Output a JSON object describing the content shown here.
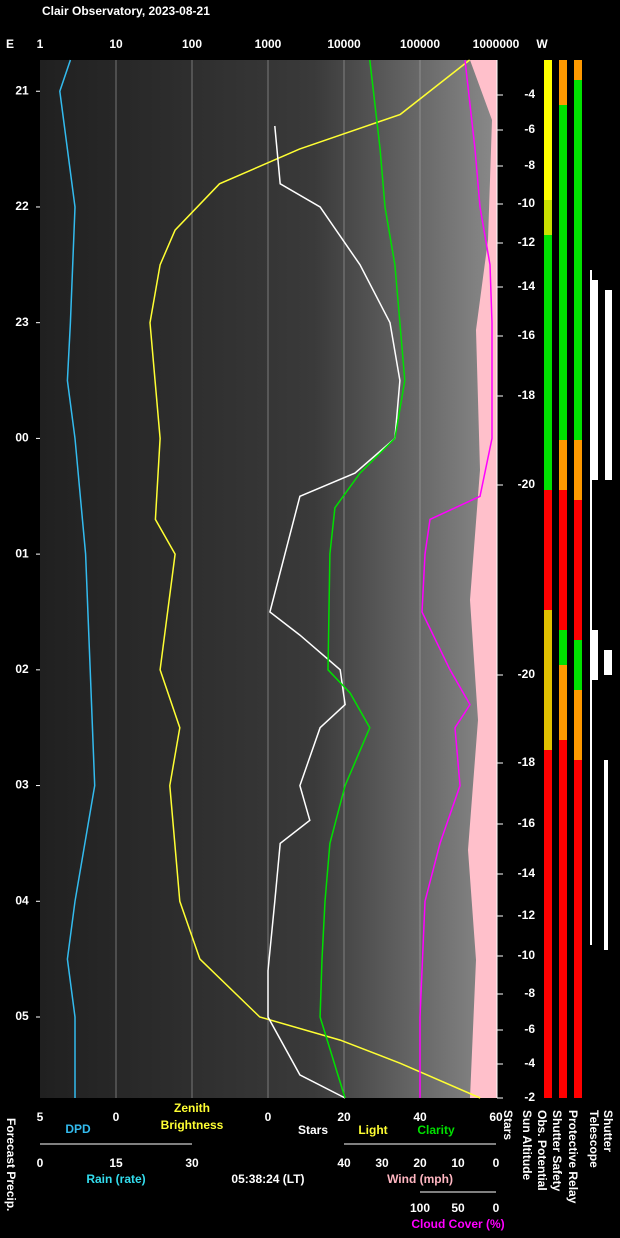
{
  "title": "Clair Observatory, 2023-08-21",
  "timestamp": "05:38:24 (LT)",
  "forecast_label": "Forecast Precip.",
  "chart_data": {
    "type": "line",
    "top_axis": {
      "left_label": "E",
      "right_label": "W",
      "scale": "log",
      "xlim": [
        1,
        1000000
      ],
      "xticks": [
        1,
        10,
        100,
        1000,
        10000,
        100000,
        1000000
      ],
      "grid": true
    },
    "ylim": [
      -0.27,
      8.7
    ],
    "yticks": [
      {
        "value": 0,
        "label": "21"
      },
      {
        "value": 1,
        "label": "22"
      },
      {
        "value": 2,
        "label": "23"
      },
      {
        "value": 3,
        "label": "00"
      },
      {
        "value": 4,
        "label": "01"
      },
      {
        "value": 5,
        "label": "02"
      },
      {
        "value": 6,
        "label": "03"
      },
      {
        "value": 7,
        "label": "04"
      },
      {
        "value": 8,
        "label": "05"
      }
    ],
    "sun_altitude_ticks": [
      -4,
      -6,
      -8,
      -10,
      -12,
      -14,
      -16,
      -18,
      -20,
      -20,
      -18,
      -16,
      -14,
      -12,
      -10,
      -8,
      -6,
      -4,
      -2
    ],
    "bottom_axes": {
      "dpd": {
        "label": "DPD",
        "xlim": [
          5,
          0
        ],
        "xticks": [
          5,
          0
        ]
      },
      "brightness": {
        "label": [
          "Zenith",
          "Brightness"
        ]
      },
      "stars": {
        "labels": [
          "Stars",
          "Light",
          "Clarity"
        ],
        "xlim": [
          0,
          60
        ],
        "xticks": [
          0,
          20,
          40,
          60
        ]
      },
      "rain": {
        "label": "Rain (rate)",
        "xlim": [
          0,
          30
        ],
        "xticks": [
          0,
          15,
          30
        ]
      },
      "wind": {
        "label": "Wind (mph)",
        "xlim": [
          40,
          0
        ],
        "xticks": [
          40,
          30,
          20,
          10,
          0
        ]
      },
      "cloud": {
        "label": "Cloud Cover (%)",
        "xlim": [
          100,
          0
        ],
        "xticks": [
          100,
          50,
          0
        ]
      }
    },
    "status_labels": [
      "Stars",
      "Sun Altitude",
      "Obs. Potential",
      "Shutter Safety",
      "Protective Relay",
      "Telescope",
      "Shutter"
    ],
    "series": [
      {
        "axis": "dpd",
        "color": "#33bbee",
        "t": [
          -0.27,
          0,
          1,
          2,
          2.5,
          3,
          4,
          5,
          6,
          7,
          7.5,
          8,
          8.7
        ],
        "values": [
          3.0,
          3.7,
          2.7,
          3.0,
          3.2,
          2.7,
          2.0,
          1.7,
          1.4,
          2.7,
          3.2,
          2.7,
          2.7
        ]
      },
      {
        "axis": "top",
        "color": "#ffff33",
        "t": [
          -0.27,
          0.2,
          0.5,
          0.8,
          1.2,
          1.5,
          2,
          3,
          3.7,
          4,
          5,
          5.5,
          6,
          7,
          7.5,
          8,
          8.2,
          8.4,
          8.7
        ],
        "values": [
          450000,
          55000,
          2600,
          230,
          60,
          38,
          28,
          38,
          33,
          60,
          38,
          69,
          51,
          69,
          127,
          780,
          8900,
          55000,
          620000
        ]
      },
      {
        "axis": "stars",
        "color": "#ffffff",
        "t": [
          0.3,
          0.8,
          1.0,
          1.5,
          2,
          2.5,
          3,
          3.3,
          3.5,
          4.5,
          4.7,
          5.0,
          5.3,
          5.5,
          6,
          6.3,
          6.5,
          7,
          7.6,
          8,
          8.5,
          8.7
        ],
        "values": [
          1.8,
          3.2,
          13.7,
          24.2,
          32.1,
          34.7,
          33.4,
          22.9,
          8.4,
          0.5,
          8.4,
          19,
          20.3,
          13.7,
          8.4,
          11,
          3.2,
          1.8,
          0,
          0,
          8.4,
          20.3
        ]
      },
      {
        "axis": "stars",
        "color": "#00e000",
        "t": [
          -0.27,
          0.5,
          1,
          1.5,
          2,
          2.5,
          3,
          3.3,
          3.6,
          4,
          5,
          5.2,
          5.5,
          6,
          6.5,
          7,
          7.5,
          8,
          8.5,
          8.7
        ],
        "values": [
          26.8,
          29.5,
          30.8,
          33.4,
          34.7,
          36,
          33.4,
          24.2,
          17.6,
          16.3,
          15.8,
          21.6,
          26.8,
          20.3,
          16.3,
          15,
          14.2,
          13.7,
          18.4,
          20.3
        ]
      },
      {
        "axis": "cloud",
        "color": "#ff00ff",
        "t": [
          -0.27,
          0.5,
          1,
          1.5,
          2,
          3,
          3.5,
          3.7,
          4,
          4.5,
          5,
          5.3,
          5.5,
          6,
          6.5,
          7,
          8,
          8.7
        ],
        "values": [
          40.8,
          27.6,
          21,
          7.9,
          5.3,
          5.3,
          21,
          86.8,
          93.4,
          97.4,
          60.5,
          34.2,
          53.9,
          47.4,
          73.7,
          93.4,
          100,
          100
        ]
      }
    ]
  }
}
